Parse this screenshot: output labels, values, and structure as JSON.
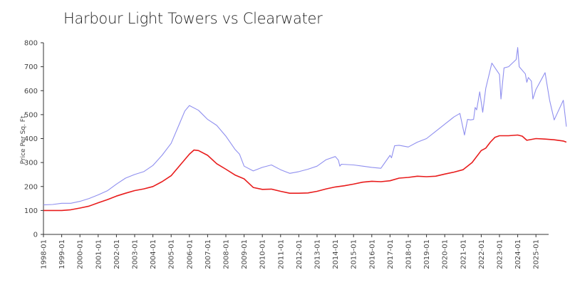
{
  "chart_data": {
    "type": "line",
    "title": "Harbour Light Towers vs Clearwater",
    "xlabel": "",
    "ylabel": "Price Per Sq. Ft.",
    "ylim": [
      0,
      800
    ],
    "yticks": [
      0,
      100,
      200,
      300,
      400,
      500,
      600,
      700,
      800
    ],
    "xticks": [
      "1998-01",
      "1999-01",
      "2000-01",
      "2001-01",
      "2002-01",
      "2003-01",
      "2004-01",
      "2005-01",
      "2006-01",
      "2007-01",
      "2008-01",
      "2009-01",
      "2010-01",
      "2011-01",
      "2012-01",
      "2013-01",
      "2014-01",
      "2015-01",
      "2016-01",
      "2017-01",
      "2018-01",
      "2019-01",
      "2020-01",
      "2021-01",
      "2022-01",
      "2023-01",
      "2024-01",
      "2025-01"
    ],
    "grid": false,
    "legend": "none",
    "series": [
      {
        "color": "#8f8fef",
        "points": [
          [
            "1998-01",
            123
          ],
          [
            "1998-07",
            125
          ],
          [
            "1999-01",
            130
          ],
          [
            "1999-07",
            130
          ],
          [
            "2000-01",
            138
          ],
          [
            "2000-07",
            150
          ],
          [
            "2001-01",
            165
          ],
          [
            "2001-07",
            182
          ],
          [
            "2002-01",
            210
          ],
          [
            "2002-07",
            235
          ],
          [
            "2003-01",
            250
          ],
          [
            "2003-07",
            262
          ],
          [
            "2004-01",
            288
          ],
          [
            "2004-07",
            330
          ],
          [
            "2005-01",
            380
          ],
          [
            "2005-07",
            470
          ],
          [
            "2005-10",
            515
          ],
          [
            "2006-01",
            538
          ],
          [
            "2006-07",
            518
          ],
          [
            "2007-01",
            480
          ],
          [
            "2007-07",
            455
          ],
          [
            "2008-01",
            410
          ],
          [
            "2008-07",
            355
          ],
          [
            "2008-10",
            335
          ],
          [
            "2009-01",
            285
          ],
          [
            "2009-07",
            265
          ],
          [
            "2010-01",
            280
          ],
          [
            "2010-07",
            290
          ],
          [
            "2011-01",
            270
          ],
          [
            "2011-07",
            255
          ],
          [
            "2012-01",
            262
          ],
          [
            "2012-07",
            272
          ],
          [
            "2013-01",
            285
          ],
          [
            "2013-07",
            312
          ],
          [
            "2014-01",
            325
          ],
          [
            "2014-03",
            310
          ],
          [
            "2014-04",
            285
          ],
          [
            "2014-05",
            293
          ],
          [
            "2015-01",
            290
          ],
          [
            "2015-07",
            285
          ],
          [
            "2016-01",
            280
          ],
          [
            "2016-07",
            276
          ],
          [
            "2017-01",
            330
          ],
          [
            "2017-02",
            320
          ],
          [
            "2017-04",
            370
          ],
          [
            "2017-07",
            372
          ],
          [
            "2018-01",
            365
          ],
          [
            "2018-07",
            385
          ],
          [
            "2019-01",
            400
          ],
          [
            "2019-07",
            430
          ],
          [
            "2020-01",
            460
          ],
          [
            "2020-07",
            490
          ],
          [
            "2020-11",
            505
          ],
          [
            "2021-02",
            415
          ],
          [
            "2021-04",
            480
          ],
          [
            "2021-06",
            478
          ],
          [
            "2021-08",
            480
          ],
          [
            "2021-09",
            530
          ],
          [
            "2021-10",
            520
          ],
          [
            "2021-12",
            595
          ],
          [
            "2022-02",
            510
          ],
          [
            "2022-04",
            610
          ],
          [
            "2022-08",
            715
          ],
          [
            "2023-01",
            668
          ],
          [
            "2023-02",
            565
          ],
          [
            "2023-04",
            695
          ],
          [
            "2023-07",
            700
          ],
          [
            "2023-12",
            730
          ],
          [
            "2024-01",
            780
          ],
          [
            "2024-02",
            700
          ],
          [
            "2024-06",
            670
          ],
          [
            "2024-07",
            635
          ],
          [
            "2024-08",
            655
          ],
          [
            "2024-10",
            640
          ],
          [
            "2024-11",
            565
          ],
          [
            "2025-01",
            605
          ],
          [
            "2025-07",
            675
          ],
          [
            "2025-10",
            560
          ],
          [
            "2026-01",
            478
          ],
          [
            "2026-07",
            560
          ],
          [
            "2026-09",
            450
          ]
        ]
      },
      {
        "color": "#e81c1c",
        "points": [
          [
            "1998-01",
            100
          ],
          [
            "1998-07",
            100
          ],
          [
            "1999-01",
            100
          ],
          [
            "1999-07",
            103
          ],
          [
            "2000-01",
            110
          ],
          [
            "2000-07",
            118
          ],
          [
            "2001-01",
            132
          ],
          [
            "2001-07",
            145
          ],
          [
            "2002-01",
            160
          ],
          [
            "2002-07",
            172
          ],
          [
            "2003-01",
            183
          ],
          [
            "2003-07",
            190
          ],
          [
            "2004-01",
            200
          ],
          [
            "2004-07",
            220
          ],
          [
            "2005-01",
            245
          ],
          [
            "2005-07",
            290
          ],
          [
            "2006-01",
            335
          ],
          [
            "2006-04",
            352
          ],
          [
            "2006-07",
            350
          ],
          [
            "2007-01",
            330
          ],
          [
            "2007-07",
            295
          ],
          [
            "2008-01",
            272
          ],
          [
            "2008-07",
            248
          ],
          [
            "2009-01",
            232
          ],
          [
            "2009-07",
            196
          ],
          [
            "2010-01",
            188
          ],
          [
            "2010-07",
            189
          ],
          [
            "2011-01",
            180
          ],
          [
            "2011-07",
            172
          ],
          [
            "2012-01",
            172
          ],
          [
            "2012-07",
            173
          ],
          [
            "2013-01",
            180
          ],
          [
            "2013-07",
            190
          ],
          [
            "2014-01",
            198
          ],
          [
            "2014-07",
            203
          ],
          [
            "2015-01",
            210
          ],
          [
            "2015-07",
            218
          ],
          [
            "2016-01",
            222
          ],
          [
            "2016-07",
            220
          ],
          [
            "2017-01",
            224
          ],
          [
            "2017-07",
            235
          ],
          [
            "2018-01",
            238
          ],
          [
            "2018-07",
            243
          ],
          [
            "2019-01",
            241
          ],
          [
            "2019-07",
            243
          ],
          [
            "2020-01",
            252
          ],
          [
            "2020-07",
            260
          ],
          [
            "2021-01",
            270
          ],
          [
            "2021-07",
            300
          ],
          [
            "2022-01",
            350
          ],
          [
            "2022-04",
            360
          ],
          [
            "2022-07",
            385
          ],
          [
            "2022-10",
            405
          ],
          [
            "2023-01",
            412
          ],
          [
            "2023-07",
            412
          ],
          [
            "2024-01",
            415
          ],
          [
            "2024-04",
            410
          ],
          [
            "2024-07",
            393
          ],
          [
            "2025-01",
            400
          ],
          [
            "2025-07",
            398
          ],
          [
            "2026-01",
            395
          ],
          [
            "2026-07",
            390
          ],
          [
            "2026-09",
            385
          ]
        ]
      }
    ]
  }
}
